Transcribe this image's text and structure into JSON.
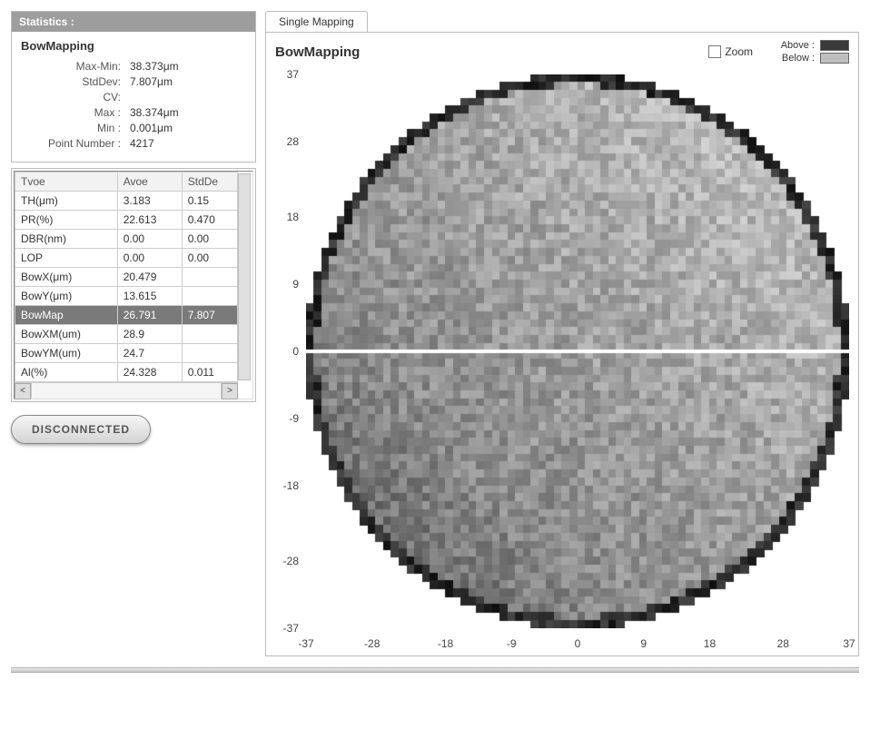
{
  "stats_panel": {
    "header": "Statistics  :",
    "title": "BowMapping",
    "rows": [
      {
        "label": "Max-Min:",
        "value": "38.373μm"
      },
      {
        "label": "StdDev:",
        "value": "7.807μm"
      },
      {
        "label": "CV:",
        "value": ""
      },
      {
        "label": "Max :",
        "value": "38.374μm"
      },
      {
        "label": "Min :",
        "value": "0.001μm"
      },
      {
        "label": "Point Number :",
        "value": "4217"
      }
    ]
  },
  "data_table": {
    "columns": [
      "Tvoe",
      "Avoe",
      "StdDe"
    ],
    "col_widths": [
      "46%",
      "29%",
      "25%"
    ],
    "rows": [
      {
        "cells": [
          "TH(μm)",
          "3.183",
          "0.15"
        ],
        "selected": false
      },
      {
        "cells": [
          "PR(%)",
          "22.613",
          "0.470"
        ],
        "selected": false
      },
      {
        "cells": [
          "DBR(nm)",
          "0.00",
          "0.00"
        ],
        "selected": false
      },
      {
        "cells": [
          "LOP",
          "0.00",
          "0.00"
        ],
        "selected": false
      },
      {
        "cells": [
          "BowX(μm)",
          "20.479",
          ""
        ],
        "selected": false
      },
      {
        "cells": [
          "BowY(μm)",
          "13.615",
          ""
        ],
        "selected": false
      },
      {
        "cells": [
          "BowMap",
          "26.791",
          "7.807"
        ],
        "selected": true
      },
      {
        "cells": [
          "BowXM(um)",
          "28.9",
          ""
        ],
        "selected": false
      },
      {
        "cells": [
          "BowYM(um)",
          "24.7",
          ""
        ],
        "selected": false
      },
      {
        "cells": [
          "Al(%)",
          "24.328",
          "0.011"
        ],
        "selected": false
      }
    ]
  },
  "disconnect_button": {
    "label": "DISCONNECTED"
  },
  "tab": {
    "label": "Single Mapping"
  },
  "map": {
    "title": "BowMapping",
    "zoom_label": "Zoom",
    "legend": {
      "above": {
        "label": "Above :",
        "color": "#3a3a3a"
      },
      "below": {
        "label": "Below :",
        "color": "#bfbfbf"
      }
    },
    "chart": {
      "type": "pixelated-circle-heatmap",
      "background_color": "#ffffff",
      "axis_font_size": 12,
      "grid_cells": 70,
      "radius_units": 37,
      "xlim": [
        -37,
        37
      ],
      "ylim": [
        -37,
        37
      ],
      "xticks": [
        -37,
        -28,
        -18,
        -9,
        0,
        9,
        18,
        28,
        37
      ],
      "yticks": [
        -37,
        -28,
        -18,
        -9,
        0,
        9,
        18,
        28,
        37
      ],
      "midline_y": 0,
      "midline_color": "#ffffff",
      "midline_width": 4,
      "palette": {
        "edge_color": "#2b2b2b",
        "dark": "#4d4d4d",
        "mid": "#8a8a8a",
        "light": "#c8c8c8",
        "noise_amplitude": 28
      },
      "gradient_direction": "bottom-left-dark-to-upper-right-light"
    }
  }
}
